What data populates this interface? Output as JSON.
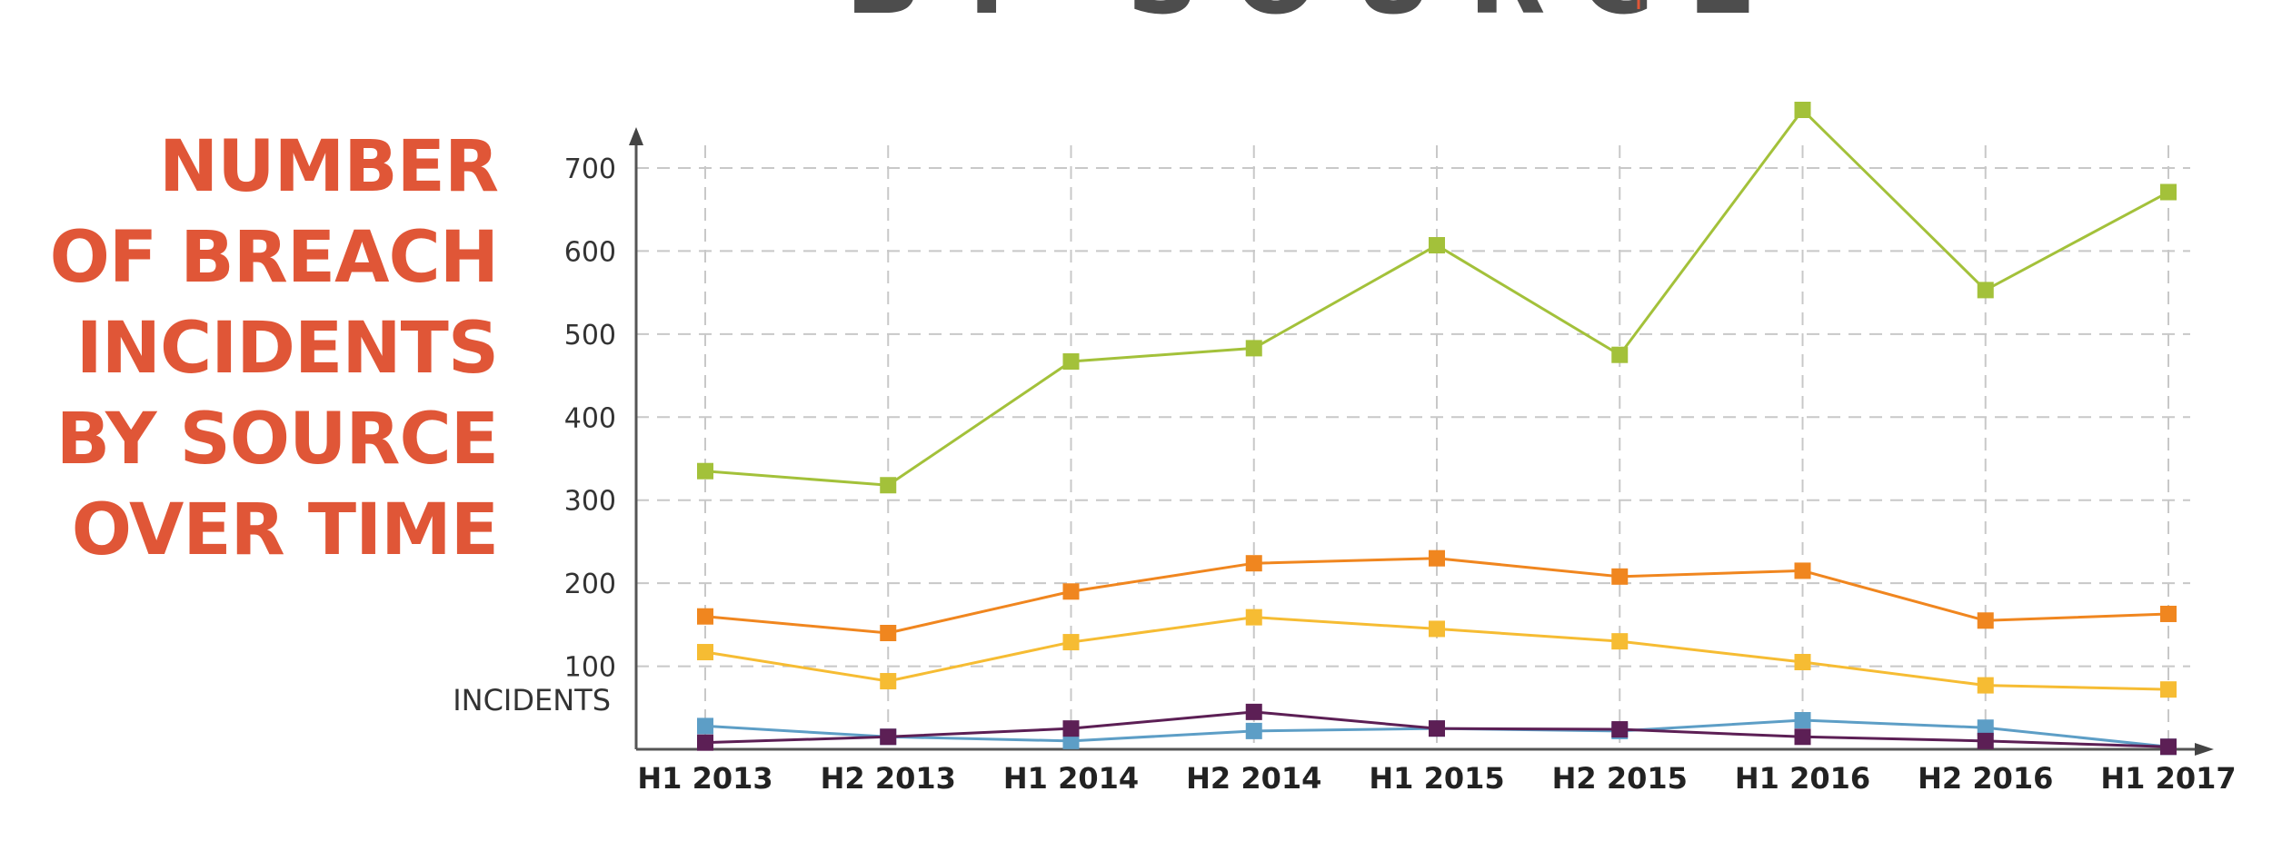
{
  "chart_data": {
    "type": "line",
    "title_lines": [
      "NUMBER",
      "OF BREACH",
      "INCIDENTS",
      "BY SOURCE",
      "OVER TIME"
    ],
    "ylabel": "INCIDENTS",
    "xlabel": "",
    "categories": [
      "H1 2013",
      "H2 2013",
      "H1 2014",
      "H2 2014",
      "H1 2015",
      "H2 2015",
      "H1 2016",
      "H2 2016",
      "H1 2017"
    ],
    "yticks": [
      100,
      200,
      300,
      400,
      500,
      600,
      700
    ],
    "ylim": [
      0,
      760
    ],
    "grid": true,
    "series": [
      {
        "name": "series-green",
        "color": "#a3c13a",
        "values": [
          335,
          318,
          467,
          483,
          607,
          475,
          770,
          553,
          671
        ]
      },
      {
        "name": "series-orange",
        "color": "#f0861f",
        "values": [
          160,
          140,
          190,
          224,
          230,
          208,
          215,
          155,
          163
        ]
      },
      {
        "name": "series-yellow",
        "color": "#f6bc33",
        "values": [
          117,
          82,
          129,
          159,
          145,
          130,
          105,
          77,
          72
        ]
      },
      {
        "name": "series-blue",
        "color": "#5d9ec6",
        "values": [
          28,
          15,
          10,
          22,
          25,
          22,
          35,
          26,
          3
        ]
      },
      {
        "name": "series-purple",
        "color": "#5c1f55",
        "values": [
          8,
          15,
          25,
          45,
          25,
          24,
          15,
          10,
          3
        ]
      }
    ]
  },
  "header_fragment": "BY SOURCE"
}
